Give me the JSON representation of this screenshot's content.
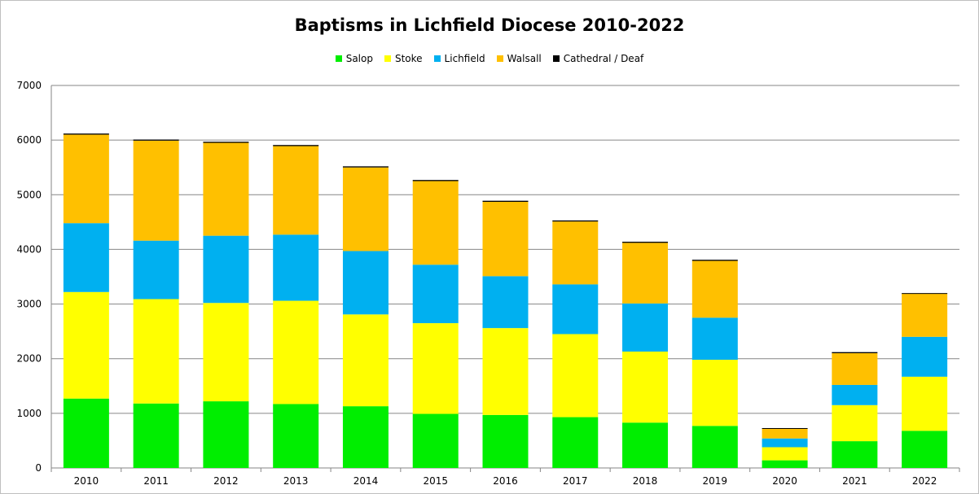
{
  "chart_data": {
    "type": "bar",
    "stacked": true,
    "title": "Baptisms in Lichfield Diocese 2010-2022",
    "xlabel": "",
    "ylabel": "",
    "ylim": [
      0,
      7000
    ],
    "yticks": [
      0,
      1000,
      2000,
      3000,
      4000,
      5000,
      6000,
      7000
    ],
    "grid": true,
    "legend_position": "top",
    "categories": [
      "2010",
      "2011",
      "2012",
      "2013",
      "2014",
      "2015",
      "2016",
      "2017",
      "2018",
      "2019",
      "2020",
      "2021",
      "2022"
    ],
    "series": [
      {
        "name": "Salop",
        "color": "#00ee00",
        "values": [
          1270,
          1180,
          1220,
          1170,
          1130,
          990,
          970,
          930,
          830,
          770,
          140,
          490,
          680
        ]
      },
      {
        "name": "Stoke",
        "color": "#ffff00",
        "values": [
          1950,
          1910,
          1800,
          1890,
          1680,
          1660,
          1590,
          1520,
          1300,
          1210,
          240,
          660,
          990
        ]
      },
      {
        "name": "Lichfield",
        "color": "#00b0f0",
        "values": [
          1260,
          1070,
          1230,
          1210,
          1160,
          1070,
          950,
          910,
          880,
          770,
          160,
          370,
          730
        ]
      },
      {
        "name": "Walsall",
        "color": "#ffc000",
        "values": [
          1620,
          1830,
          1700,
          1620,
          1530,
          1530,
          1360,
          1150,
          1110,
          1040,
          180,
          580,
          790
        ]
      },
      {
        "name": "Cathedral / Deaf",
        "color": "#000000",
        "values": [
          20,
          20,
          20,
          20,
          20,
          20,
          20,
          20,
          20,
          20,
          10,
          20,
          10
        ]
      }
    ]
  }
}
